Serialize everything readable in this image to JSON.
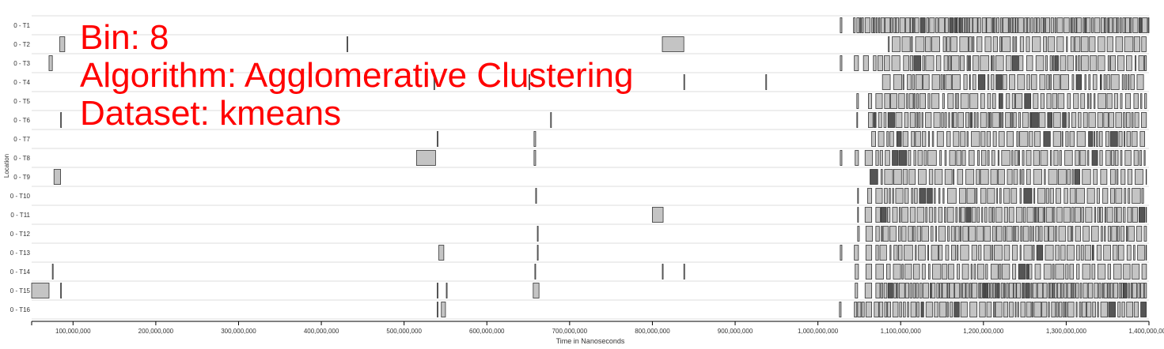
{
  "overlay": {
    "line1": "Bin: 8",
    "line2": "Algorithm: Agglomerative Clustering",
    "line3": "Dataset: kmeans",
    "color": "#ff0000"
  },
  "chart_data": {
    "type": "timeline",
    "xlabel": "Time in Nanoseconds",
    "ylabel": "Location",
    "xlim": [
      50000000,
      1400000000
    ],
    "x_ticks": [
      {
        "value": 100000000,
        "label": "100,000,000"
      },
      {
        "value": 200000000,
        "label": "200,000,000"
      },
      {
        "value": 300000000,
        "label": "300,000,000"
      },
      {
        "value": 400000000,
        "label": "400,000,000"
      },
      {
        "value": 500000000,
        "label": "500,000,000"
      },
      {
        "value": 600000000,
        "label": "600,000,000"
      },
      {
        "value": 700000000,
        "label": "700,000,000"
      },
      {
        "value": 800000000,
        "label": "800,000,000"
      },
      {
        "value": 900000000,
        "label": "900,000,000"
      },
      {
        "value": 1000000000,
        "label": "1,000,000,000"
      },
      {
        "value": 1100000000,
        "label": "1,100,000,000"
      },
      {
        "value": 1200000000,
        "label": "1,200,000,000"
      },
      {
        "value": 1300000000,
        "label": "1,300,000,000"
      },
      {
        "value": 1400000000,
        "label": "1,400,000,000"
      }
    ],
    "bar_fill": "#c4c4c4",
    "bar_stroke": "#333333",
    "grid_color": "#dddddd",
    "rows": [
      {
        "label": "0 - T1",
        "events": [
          [
            1027000000,
            1029000000
          ],
          [
            1043000000,
            1045000000
          ],
          [
            1047000000,
            1050000000
          ],
          [
            1051000000,
            1052000000
          ],
          [
            1053000000,
            1055000000
          ],
          [
            1057000000,
            1063000000
          ]
        ],
        "dense": [
          1065000000,
          1398000000,
          3
        ],
        "end_marker": 1400000000
      },
      {
        "label": "0 - T2",
        "events": [
          [
            84000000,
            90000000
          ],
          [
            431000000,
            432000000
          ],
          [
            812000000,
            838000000
          ]
        ],
        "dense": [
          1085000000,
          1397000000,
          7
        ]
      },
      {
        "label": "0 - T3",
        "events": [
          [
            71000000,
            75000000
          ],
          [
            1027000000,
            1029000000
          ],
          [
            1044000000,
            1049000000
          ],
          [
            1055000000,
            1061000000
          ]
        ],
        "dense": [
          1067000000,
          1397000000,
          7
        ]
      },
      {
        "label": "0 - T4",
        "events": [
          [
            536000000,
            537000000
          ],
          [
            651000000,
            652000000
          ],
          [
            838000000,
            839000000
          ],
          [
            937000000,
            938000000
          ]
        ],
        "dense": [
          1078000000,
          1397000000,
          7
        ]
      },
      {
        "label": "0 - T5",
        "events": [
          [
            1047000000,
            1049000000
          ],
          [
            1061000000,
            1065000000
          ],
          [
            1128000000,
            1130000000
          ],
          [
            1166000000,
            1169000000
          ]
        ],
        "dense": [
          1070000000,
          1397000000,
          7
        ]
      },
      {
        "label": "0 - T6",
        "events": [
          [
            85000000,
            86000000
          ],
          [
            677000000,
            678000000
          ],
          [
            1047000000,
            1048000000
          ]
        ],
        "dense": [
          1061000000,
          1397000000,
          5
        ]
      },
      {
        "label": "0 - T7",
        "events": [
          [
            540000000,
            541000000
          ],
          [
            657000000,
            659000000
          ]
        ],
        "dense": [
          1065000000,
          1397000000,
          6
        ]
      },
      {
        "label": "0 - T8",
        "events": [
          [
            515000000,
            538000000
          ],
          [
            657000000,
            659000000
          ],
          [
            1027000000,
            1029000000
          ],
          [
            1045000000,
            1049000000
          ],
          [
            1057000000,
            1066000000
          ]
        ],
        "dense": [
          1070000000,
          1397000000,
          6
        ]
      },
      {
        "label": "0 - T9",
        "events": [
          [
            77000000,
            85000000
          ]
        ],
        "dense": [
          1063000000,
          1397000000,
          7
        ]
      },
      {
        "label": "0 - T10",
        "events": [
          [
            659000000,
            660000000
          ],
          [
            1048000000,
            1049000000
          ],
          [
            1060000000,
            1065000000
          ]
        ],
        "dense": [
          1070000000,
          1397000000,
          6
        ]
      },
      {
        "label": "0 - T11",
        "events": [
          [
            800000000,
            813000000
          ],
          [
            1048000000,
            1049000000
          ],
          [
            1057000000,
            1065000000
          ]
        ],
        "dense": [
          1070000000,
          1397000000,
          5
        ]
      },
      {
        "label": "0 - T12",
        "events": [
          [
            661000000,
            662000000
          ],
          [
            1048000000,
            1050000000
          ],
          [
            1058000000,
            1066000000
          ]
        ],
        "dense": [
          1070000000,
          1397000000,
          4
        ]
      },
      {
        "label": "0 - T13",
        "events": [
          [
            542000000,
            548000000
          ],
          [
            661000000,
            662000000
          ],
          [
            1027000000,
            1029000000
          ],
          [
            1044000000,
            1049000000
          ],
          [
            1058000000,
            1065000000
          ]
        ],
        "dense": [
          1070000000,
          1397000000,
          6
        ]
      },
      {
        "label": "0 - T14",
        "events": [
          [
            75000000,
            76000000
          ],
          [
            658000000,
            659000000
          ],
          [
            812000000,
            813000000
          ],
          [
            838000000,
            839000000
          ],
          [
            1045000000,
            1049000000
          ],
          [
            1058000000,
            1065000000
          ]
        ],
        "dense": [
          1070000000,
          1397000000,
          6
        ]
      },
      {
        "label": "0 - T15",
        "events": [
          [
            50000000,
            71000000
          ],
          [
            85000000,
            86000000
          ],
          [
            540000000,
            541000000
          ],
          [
            551000000,
            552000000
          ],
          [
            656000000,
            663000000
          ],
          [
            1045000000,
            1048000000
          ],
          [
            1057000000,
            1065000000
          ]
        ],
        "dense": [
          1070000000,
          1397000000,
          3
        ]
      },
      {
        "label": "0 - T16",
        "events": [
          [
            540000000,
            541000000
          ],
          [
            545000000,
            550000000
          ],
          [
            1026000000,
            1028000000
          ],
          [
            1044000000,
            1047000000
          ],
          [
            1048000000,
            1052000000
          ],
          [
            1053000000,
            1056000000
          ],
          [
            1058000000,
            1065000000
          ]
        ],
        "dense": [
          1068000000,
          1397000000,
          5
        ]
      }
    ]
  }
}
